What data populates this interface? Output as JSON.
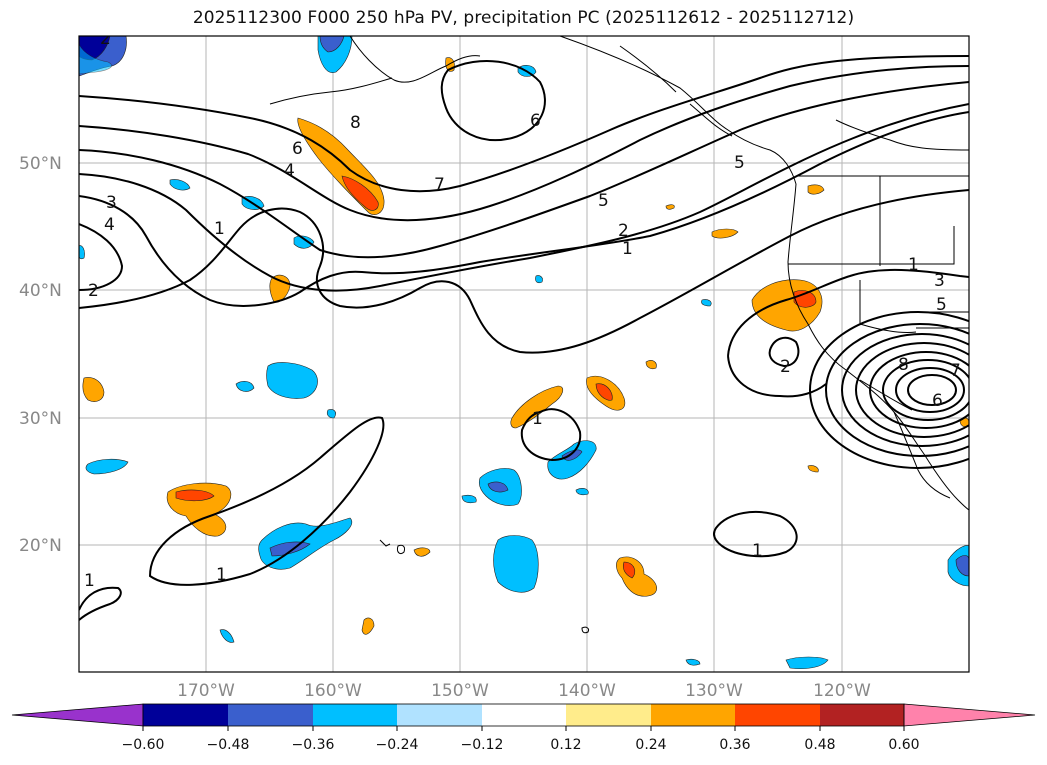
{
  "title": "2025112300 F000 250 hPa PV, precipitation PC (2025112612 - 2025112712)",
  "map": {
    "lat_labels": [
      "50°N",
      "40°N",
      "30°N",
      "20°N"
    ],
    "lon_labels": [
      "170°W",
      "160°W",
      "150°W",
      "140°W",
      "130°W",
      "120°W"
    ],
    "contour_labels": [
      "2",
      "3",
      "4",
      "2",
      "1",
      "6",
      "4",
      "8",
      "6",
      "7",
      "5",
      "2",
      "1",
      "5",
      "3",
      "1",
      "5",
      "2",
      "8",
      "7",
      "6",
      "1",
      "1",
      "1",
      "1"
    ]
  },
  "colorbar": {
    "colors": [
      "#9932cc",
      "#000099",
      "#3a5fcd",
      "#00bfff",
      "#b0e2ff",
      "#ffffff",
      "#ffec8b",
      "#ffa500",
      "#ff4500",
      "#b22222",
      "#ff82ab"
    ],
    "tick_labels": [
      "−0.60",
      "−0.48",
      "−0.36",
      "−0.24",
      "−0.12",
      "0.12",
      "0.24",
      "0.36",
      "0.48",
      "0.60"
    ]
  }
}
